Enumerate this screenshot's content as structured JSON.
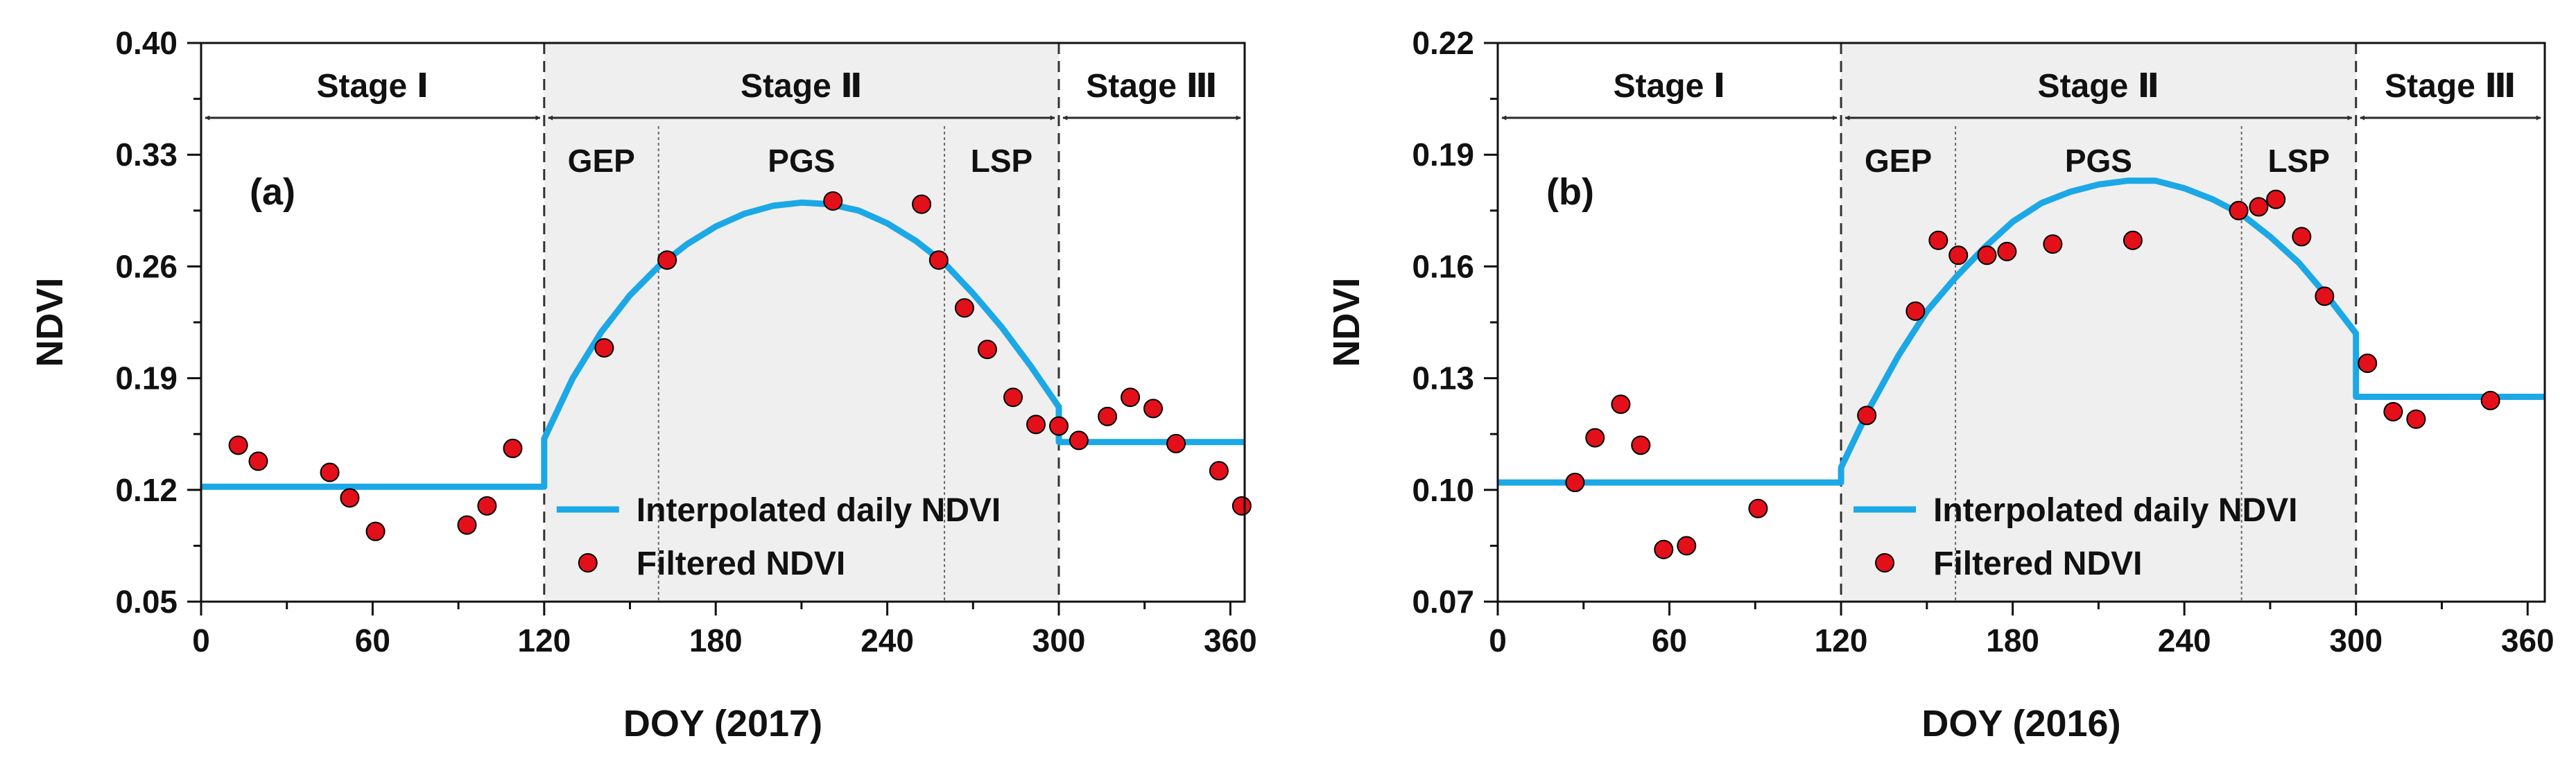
{
  "chart_data": [
    {
      "type": "line",
      "panel_label": "(a)",
      "xlabel": "DOY (2017)",
      "ylabel": "NDVI",
      "xlim": [
        0,
        365
      ],
      "ylim": [
        0.05,
        0.4
      ],
      "xticks": [
        0,
        60,
        120,
        180,
        240,
        300,
        360
      ],
      "yticks": [
        "0.05",
        "0.12",
        "0.19",
        "0.26",
        "0.33",
        "0.40"
      ],
      "stages": [
        {
          "label": "Stage Ⅰ",
          "start": 0,
          "end": 120
        },
        {
          "label": "Stage Ⅱ",
          "start": 120,
          "end": 300
        },
        {
          "label": "Stage Ⅲ",
          "start": 300,
          "end": 365
        }
      ],
      "shaded_range": [
        120,
        300
      ],
      "stage_boundaries": [
        120,
        300
      ],
      "phases": [
        {
          "label": "GEP",
          "start": 120,
          "end": 160
        },
        {
          "label": "PGS",
          "start": 160,
          "end": 260
        },
        {
          "label": "LSP",
          "start": 260,
          "end": 300
        }
      ],
      "phase_boundaries": [
        160,
        260
      ],
      "series": [
        {
          "name": "Interpolated daily NDVI",
          "kind": "line",
          "color": "#1ca8e6",
          "x": [
            0,
            120,
            120,
            130,
            140,
            150,
            160,
            170,
            180,
            190,
            200,
            210,
            220,
            230,
            240,
            250,
            260,
            270,
            280,
            290,
            300,
            300,
            365
          ],
          "y": [
            0.122,
            0.122,
            0.152,
            0.19,
            0.219,
            0.242,
            0.26,
            0.274,
            0.285,
            0.293,
            0.298,
            0.3,
            0.299,
            0.295,
            0.287,
            0.276,
            0.262,
            0.243,
            0.222,
            0.198,
            0.172,
            0.15,
            0.15
          ]
        },
        {
          "name": "Filtered NDVI",
          "kind": "scatter",
          "color": "#e3101a",
          "x": [
            13,
            20,
            45,
            52,
            61,
            93,
            100,
            109,
            141,
            163,
            221,
            252,
            258,
            267,
            275,
            284,
            292,
            300,
            307,
            317,
            325,
            333,
            341,
            356,
            364
          ],
          "y": [
            0.148,
            0.138,
            0.131,
            0.115,
            0.094,
            0.098,
            0.11,
            0.146,
            0.209,
            0.264,
            0.301,
            0.299,
            0.264,
            0.234,
            0.208,
            0.178,
            0.161,
            0.16,
            0.151,
            0.166,
            0.178,
            0.171,
            0.149,
            0.132,
            0.11
          ]
        }
      ]
    },
    {
      "type": "line",
      "panel_label": "(b)",
      "xlabel": "DOY (2016)",
      "ylabel": "NDVI",
      "xlim": [
        0,
        366
      ],
      "ylim": [
        0.07,
        0.22
      ],
      "xticks": [
        0,
        60,
        120,
        180,
        240,
        300,
        360
      ],
      "yticks": [
        "0.07",
        "0.10",
        "0.13",
        "0.16",
        "0.19",
        "0.22"
      ],
      "stages": [
        {
          "label": "Stage Ⅰ",
          "start": 0,
          "end": 120
        },
        {
          "label": "Stage Ⅱ",
          "start": 120,
          "end": 300
        },
        {
          "label": "Stage Ⅲ",
          "start": 300,
          "end": 366
        }
      ],
      "shaded_range": [
        120,
        300
      ],
      "stage_boundaries": [
        120,
        300
      ],
      "phases": [
        {
          "label": "GEP",
          "start": 120,
          "end": 160
        },
        {
          "label": "PGS",
          "start": 160,
          "end": 260
        },
        {
          "label": "LSP",
          "start": 260,
          "end": 300
        }
      ],
      "phase_boundaries": [
        160,
        260
      ],
      "series": [
        {
          "name": "Interpolated daily NDVI",
          "kind": "line",
          "color": "#1ca8e6",
          "x": [
            0,
            120,
            120,
            130,
            140,
            150,
            160,
            170,
            180,
            190,
            200,
            210,
            220,
            230,
            240,
            250,
            260,
            270,
            280,
            290,
            295,
            300,
            300,
            366
          ],
          "y": [
            0.102,
            0.102,
            0.106,
            0.122,
            0.136,
            0.148,
            0.157,
            0.165,
            0.172,
            0.177,
            0.18,
            0.182,
            0.183,
            0.183,
            0.181,
            0.178,
            0.174,
            0.168,
            0.161,
            0.152,
            0.147,
            0.142,
            0.125,
            0.125
          ]
        },
        {
          "name": "Filtered NDVI",
          "kind": "scatter",
          "color": "#e3101a",
          "x": [
            27,
            34,
            43,
            50,
            58,
            66,
            91,
            129,
            146,
            154,
            161,
            171,
            178,
            194,
            222,
            259,
            266,
            272,
            281,
            289,
            304,
            313,
            321,
            347
          ],
          "y": [
            0.102,
            0.114,
            0.123,
            0.112,
            0.084,
            0.085,
            0.095,
            0.12,
            0.148,
            0.167,
            0.163,
            0.163,
            0.164,
            0.166,
            0.167,
            0.175,
            0.176,
            0.178,
            0.168,
            0.152,
            0.134,
            0.121,
            0.119,
            0.124
          ]
        }
      ]
    }
  ],
  "legend": {
    "line_label": "Interpolated daily NDVI",
    "dot_label": "Filtered NDVI"
  }
}
